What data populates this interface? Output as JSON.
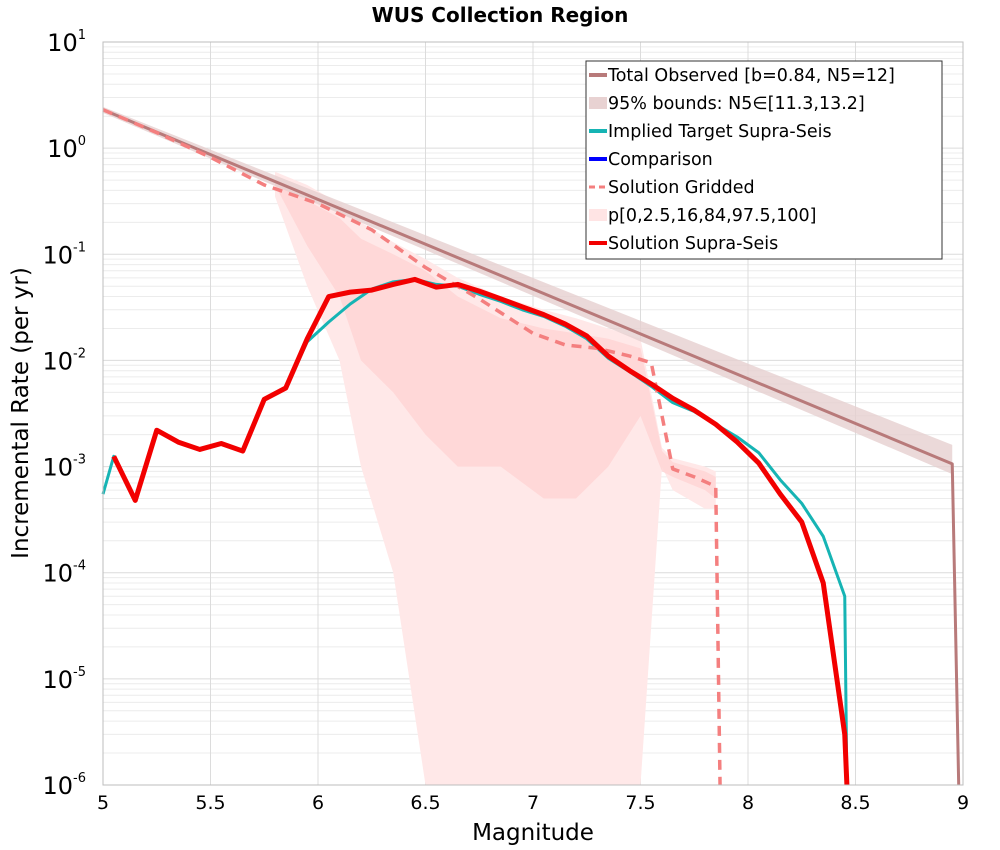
{
  "chart_data": {
    "type": "line",
    "title": "WUS Collection Region",
    "xlabel": "Magnitude",
    "ylabel": "Incremental Rate (per yr)",
    "xlim": [
      5,
      9
    ],
    "ylim": [
      1e-06,
      10
    ],
    "yscale": "log",
    "grid": true,
    "legend_position": "top-right",
    "x_ticks": [
      "5",
      "5.5",
      "6",
      "6.5",
      "7",
      "7.5",
      "8",
      "8.5",
      "9"
    ],
    "y_ticks": [
      {
        "base": "10",
        "exp": "-6"
      },
      {
        "base": "10",
        "exp": "-5"
      },
      {
        "base": "10",
        "exp": "-4"
      },
      {
        "base": "10",
        "exp": "-3"
      },
      {
        "base": "10",
        "exp": "-2"
      },
      {
        "base": "10",
        "exp": "-1"
      },
      {
        "base": "10",
        "exp": "0"
      },
      {
        "base": "10",
        "exp": "1"
      }
    ],
    "legend": [
      {
        "label": "Total Observed [b=0.84, N5=12]",
        "style": "line",
        "color": "#b87a7a"
      },
      {
        "label": "95% bounds: N5∈[11.3,13.2]",
        "style": "band",
        "color": "#e8d2d2"
      },
      {
        "label": "Implied Target Supra-Seis",
        "style": "line",
        "color": "#16b4b4"
      },
      {
        "label": "Comparison",
        "style": "line",
        "color": "#0000ff"
      },
      {
        "label": " Solution Gridded",
        "style": "dashed",
        "color": "#f47f7f"
      },
      {
        "label": "p[0,2.5,16,84,97.5,100]",
        "style": "band",
        "color": "#ffe4e4"
      },
      {
        "label": "Solution Supra-Seis",
        "style": "line",
        "color": "#f20000"
      }
    ],
    "series": [
      {
        "name": "Total Observed [b=0.84, N5=12]",
        "color": "#b87a7a",
        "x": [
          5.0,
          8.95,
          8.95,
          8.98
        ],
        "y": [
          2.3,
          0.00106,
          0.00106,
          1e-06
        ]
      },
      {
        "name": "95% bounds: N5∈[11.3,13.2]",
        "color": "#e8d2d2",
        "kind": "band",
        "x": [
          5.0,
          8.95
        ],
        "lower": [
          2.15,
          0.00085
        ],
        "upper": [
          2.45,
          0.0016
        ]
      },
      {
        "name": "Implied Target Supra-Seis",
        "color": "#16b4b4",
        "x": [
          5.0,
          5.05,
          5.15,
          5.25,
          5.35,
          5.45,
          5.55,
          5.65,
          5.75,
          5.85,
          5.95,
          6.05,
          6.15,
          6.25,
          6.35,
          6.45,
          6.55,
          6.65,
          6.75,
          6.85,
          6.95,
          7.05,
          7.15,
          7.25,
          7.35,
          7.45,
          7.55,
          7.65,
          7.75,
          7.85,
          7.95,
          8.05,
          8.15,
          8.25,
          8.35,
          8.45,
          8.46
        ],
        "y": [
          0.00055,
          0.00125,
          0.00048,
          0.0022,
          0.0017,
          0.00145,
          0.00165,
          0.0014,
          0.0043,
          0.0055,
          0.015,
          0.023,
          0.034,
          0.047,
          0.055,
          0.058,
          0.052,
          0.05,
          0.042,
          0.036,
          0.03,
          0.026,
          0.021,
          0.016,
          0.0105,
          0.0078,
          0.0057,
          0.004,
          0.0033,
          0.0025,
          0.0019,
          0.00135,
          0.00075,
          0.00045,
          0.00022,
          6e-05,
          1e-06
        ]
      },
      {
        "name": "Solution Gridded",
        "color": "#f47f7f",
        "dashed": true,
        "x": [
          5.0,
          5.25,
          5.5,
          5.75,
          6.0,
          6.25,
          6.5,
          6.75,
          7.0,
          7.15,
          7.3,
          7.45,
          7.55,
          7.65,
          7.75,
          7.85,
          7.85,
          7.87
        ],
        "y": [
          2.3,
          1.4,
          0.82,
          0.45,
          0.3,
          0.17,
          0.075,
          0.038,
          0.018,
          0.014,
          0.013,
          0.011,
          0.0095,
          0.00095,
          0.0008,
          0.00065,
          0.00065,
          1e-06
        ]
      },
      {
        "name": "p[0,2.5,16,84,97.5,100]",
        "color": "#ffe4e4",
        "kind": "percentile_bands",
        "x": [
          5.8,
          5.95,
          6.1,
          6.2,
          6.35,
          6.5,
          6.65,
          6.85,
          7.05,
          7.2,
          7.35,
          7.5,
          7.6,
          7.65,
          7.8,
          7.85
        ],
        "p0": [
          0.35,
          0.05,
          0.01,
          0.001,
          0.0001,
          1e-06,
          1e-06,
          1e-06,
          1e-06,
          1e-06,
          1e-06,
          1e-06,
          0.001,
          0.0006,
          0.0004,
          0.0004
        ],
        "p16": [
          0.45,
          0.12,
          0.04,
          0.01,
          0.005,
          0.002,
          0.001,
          0.001,
          0.0005,
          0.0005,
          0.001,
          0.003,
          0.0009,
          0.0008,
          0.0006,
          0.0005
        ],
        "p84": [
          0.5,
          0.32,
          0.22,
          0.14,
          0.1,
          0.07,
          0.04,
          0.025,
          0.02,
          0.018,
          0.016,
          0.013,
          0.0014,
          0.0011,
          0.0009,
          0.0008
        ],
        "p100": [
          0.6,
          0.45,
          0.3,
          0.2,
          0.13,
          0.09,
          0.06,
          0.04,
          0.03,
          0.025,
          0.02,
          0.016,
          0.0015,
          0.0012,
          0.001,
          0.0009
        ]
      },
      {
        "name": "Solution Supra-Seis",
        "color": "#f20000",
        "x": [
          5.05,
          5.15,
          5.25,
          5.35,
          5.45,
          5.55,
          5.65,
          5.75,
          5.85,
          5.95,
          6.05,
          6.15,
          6.25,
          6.35,
          6.45,
          6.55,
          6.65,
          6.75,
          6.85,
          6.95,
          7.05,
          7.15,
          7.25,
          7.35,
          7.45,
          7.55,
          7.65,
          7.75,
          7.85,
          7.95,
          8.05,
          8.15,
          8.25,
          8.35,
          8.45,
          8.46
        ],
        "y": [
          0.00125,
          0.00048,
          0.0022,
          0.0017,
          0.00145,
          0.00165,
          0.0014,
          0.0043,
          0.0055,
          0.016,
          0.04,
          0.044,
          0.046,
          0.052,
          0.058,
          0.049,
          0.052,
          0.045,
          0.038,
          0.032,
          0.027,
          0.022,
          0.017,
          0.011,
          0.008,
          0.006,
          0.0044,
          0.0034,
          0.0025,
          0.0017,
          0.00108,
          0.00055,
          0.0003,
          8e-05,
          3e-06,
          1e-06
        ]
      }
    ]
  }
}
